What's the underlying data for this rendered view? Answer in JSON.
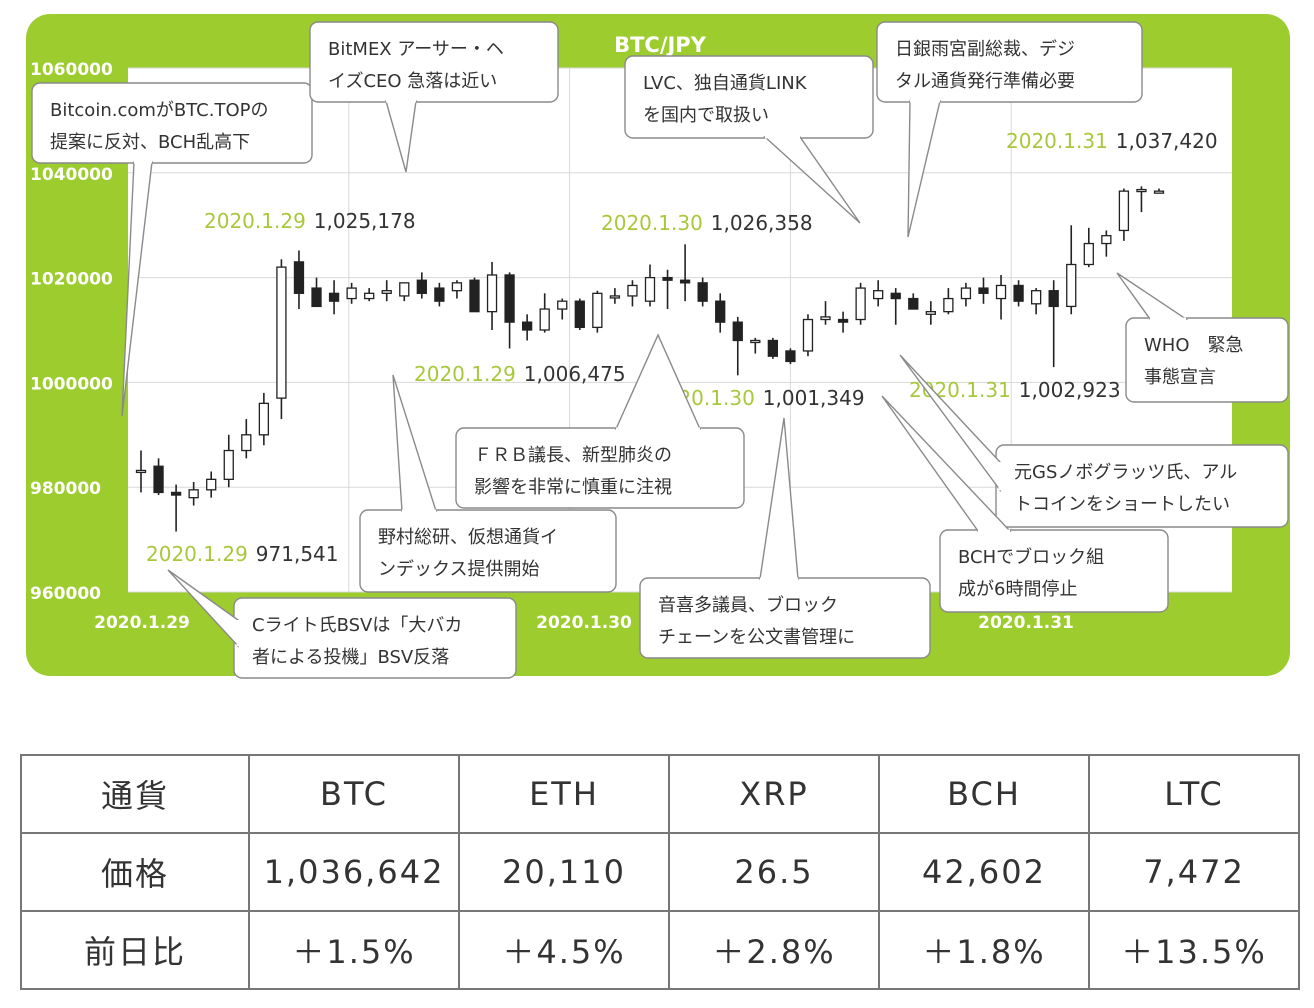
{
  "chart_data": {
    "type": "candlestick",
    "title": "BTC/JPY",
    "ylim": [
      960000,
      1060000
    ],
    "yticks": [
      "960000",
      "980000",
      "1000000",
      "1020000",
      "1040000",
      "1060000"
    ],
    "xticks": [
      "2020.1.29",
      "2020.1.30",
      "2020.1.31"
    ],
    "grid": true,
    "candles": [
      {
        "open": 983200,
        "high": 987000,
        "low": 979000,
        "close": 983200
      },
      {
        "open": 984000,
        "high": 985500,
        "low": 978500,
        "close": 979000
      },
      {
        "open": 979000,
        "high": 980500,
        "low": 971541,
        "close": 978500
      },
      {
        "open": 978000,
        "high": 981000,
        "low": 976500,
        "close": 979500
      },
      {
        "open": 979500,
        "high": 983000,
        "low": 978000,
        "close": 981500
      },
      {
        "open": 981500,
        "high": 990000,
        "low": 980000,
        "close": 987000
      },
      {
        "open": 987000,
        "high": 993000,
        "low": 985500,
        "close": 990000
      },
      {
        "open": 990000,
        "high": 998000,
        "low": 988000,
        "close": 996000
      },
      {
        "open": 997000,
        "high": 1023500,
        "low": 993000,
        "close": 1022000
      },
      {
        "open": 1023000,
        "high": 1025178,
        "low": 1014000,
        "close": 1017000
      },
      {
        "open": 1018000,
        "high": 1020000,
        "low": 1014500,
        "close": 1014500
      },
      {
        "open": 1017000,
        "high": 1019500,
        "low": 1013000,
        "close": 1015500
      },
      {
        "open": 1016000,
        "high": 1019000,
        "low": 1015000,
        "close": 1018000
      },
      {
        "open": 1016000,
        "high": 1018000,
        "low": 1015500,
        "close": 1017000
      },
      {
        "open": 1017000,
        "high": 1019500,
        "low": 1015500,
        "close": 1017500
      },
      {
        "open": 1016500,
        "high": 1019000,
        "low": 1015500,
        "close": 1019000
      },
      {
        "open": 1019500,
        "high": 1021000,
        "low": 1016000,
        "close": 1017000
      },
      {
        "open": 1018000,
        "high": 1019000,
        "low": 1014500,
        "close": 1015500
      },
      {
        "open": 1017500,
        "high": 1019500,
        "low": 1016000,
        "close": 1019000
      },
      {
        "open": 1019500,
        "high": 1020000,
        "low": 1013500,
        "close": 1013500
      },
      {
        "open": 1013500,
        "high": 1023000,
        "low": 1010000,
        "close": 1020500
      },
      {
        "open": 1020500,
        "high": 1021000,
        "low": 1006475,
        "close": 1011500
      },
      {
        "open": 1011500,
        "high": 1013000,
        "low": 1008000,
        "close": 1010000
      },
      {
        "open": 1010000,
        "high": 1017000,
        "low": 1009500,
        "close": 1014000
      },
      {
        "open": 1014000,
        "high": 1016000,
        "low": 1012000,
        "close": 1015500
      },
      {
        "open": 1015500,
        "high": 1016000,
        "low": 1010000,
        "close": 1010500
      },
      {
        "open": 1010500,
        "high": 1017500,
        "low": 1009500,
        "close": 1017000
      },
      {
        "open": 1016500,
        "high": 1018000,
        "low": 1015000,
        "close": 1016500
      },
      {
        "open": 1016500,
        "high": 1019500,
        "low": 1014500,
        "close": 1018500
      },
      {
        "open": 1015500,
        "high": 1022500,
        "low": 1014500,
        "close": 1020000
      },
      {
        "open": 1020000,
        "high": 1021500,
        "low": 1014000,
        "close": 1019500
      },
      {
        "open": 1019500,
        "high": 1026358,
        "low": 1015500,
        "close": 1019000
      },
      {
        "open": 1019000,
        "high": 1020000,
        "low": 1014500,
        "close": 1015500
      },
      {
        "open": 1015500,
        "high": 1017000,
        "low": 1009500,
        "close": 1011500
      },
      {
        "open": 1011500,
        "high": 1012500,
        "low": 1001349,
        "close": 1008000
      },
      {
        "open": 1008000,
        "high": 1008500,
        "low": 1005500,
        "close": 1008000
      },
      {
        "open": 1008000,
        "high": 1008500,
        "low": 1004500,
        "close": 1005000
      },
      {
        "open": 1006000,
        "high": 1006500,
        "low": 1003500,
        "close": 1004000
      },
      {
        "open": 1006000,
        "high": 1013000,
        "low": 1005000,
        "close": 1012000
      },
      {
        "open": 1012000,
        "high": 1015500,
        "low": 1011000,
        "close": 1012500
      },
      {
        "open": 1012000,
        "high": 1013500,
        "low": 1009500,
        "close": 1011500
      },
      {
        "open": 1012000,
        "high": 1019000,
        "low": 1011000,
        "close": 1018000
      },
      {
        "open": 1016000,
        "high": 1019500,
        "low": 1014500,
        "close": 1017500
      },
      {
        "open": 1017000,
        "high": 1018000,
        "low": 1011000,
        "close": 1016000
      },
      {
        "open": 1016000,
        "high": 1017000,
        "low": 1014000,
        "close": 1014000
      },
      {
        "open": 1013000,
        "high": 1015500,
        "low": 1011000,
        "close": 1013500
      },
      {
        "open": 1013500,
        "high": 1018000,
        "low": 1013000,
        "close": 1016000
      },
      {
        "open": 1016000,
        "high": 1019000,
        "low": 1014500,
        "close": 1018000
      },
      {
        "open": 1018000,
        "high": 1020000,
        "low": 1015000,
        "close": 1017000
      },
      {
        "open": 1016000,
        "high": 1020500,
        "low": 1012000,
        "close": 1018500
      },
      {
        "open": 1018500,
        "high": 1019500,
        "low": 1014500,
        "close": 1015500
      },
      {
        "open": 1015000,
        "high": 1018000,
        "low": 1013000,
        "close": 1017500
      },
      {
        "open": 1017500,
        "high": 1019500,
        "low": 1002923,
        "close": 1014500
      },
      {
        "open": 1014500,
        "high": 1030000,
        "low": 1013000,
        "close": 1022500
      },
      {
        "open": 1022500,
        "high": 1029500,
        "low": 1022000,
        "close": 1026500
      },
      {
        "open": 1026500,
        "high": 1029000,
        "low": 1024000,
        "close": 1028000
      },
      {
        "open": 1029000,
        "high": 1037000,
        "low": 1027000,
        "close": 1036500
      },
      {
        "open": 1036500,
        "high": 1037420,
        "low": 1032500,
        "close": 1036800
      },
      {
        "open": 1036500,
        "high": 1037000,
        "low": 1036200,
        "close": 1036500
      }
    ],
    "point_labels": [
      {
        "date": "2020.1.29",
        "value": "1,025,178"
      },
      {
        "date": "2020.1.29",
        "value": "1,006,475"
      },
      {
        "date": "2020.1.29",
        "value": "971,541"
      },
      {
        "date": "2020.1.30",
        "value": "1,026,358"
      },
      {
        "date": "2020.1.30",
        "value": "1,001,349"
      },
      {
        "date": "2020.1.31",
        "value": "1,037,420"
      },
      {
        "date": "2020.1.31",
        "value": "1,002,923"
      }
    ],
    "annotations": [
      [
        "Bitcoin.comがBTC.TOPの",
        "提案に反対、BCH乱高下"
      ],
      [
        "BitMEX アーサー・ヘ",
        "イズCEO 急落は近い"
      ],
      [
        "LVC、独自通貨LINK",
        "を国内で取扱い"
      ],
      [
        "日銀雨宮副総裁、デジ",
        "タル通貨発行準備必要"
      ],
      [
        "WHO　緊急",
        "事態宣言"
      ],
      [
        "元GSノボグラッツ氏、アル",
        "トコインをショートしたい"
      ],
      [
        "ＦＲＢ議長、新型肺炎の",
        "影響を非常に慎重に注視"
      ],
      [
        "野村総研、仮想通貨イ",
        "ンデックス提供開始"
      ],
      [
        "BCHでブロック組",
        "成が6時間停止"
      ],
      [
        "音喜多議員、ブロック",
        "チェーンを公文書管理に"
      ],
      [
        "Cライト氏BSVは「大バカ",
        "者による投機」BSV反落"
      ]
    ],
    "colors": {
      "frame": "#9ccc2e",
      "label_date": "#a8c83c",
      "up": "#ffffff",
      "down": "#222222",
      "grid": "#d8d8d8"
    }
  },
  "table": {
    "rows": [
      {
        "head": "通貨",
        "cells": [
          "BTC",
          "ETH",
          "XRP",
          "BCH",
          "LTC"
        ]
      },
      {
        "head": "価格",
        "cells": [
          "1,036,642",
          "20,110",
          "26.5",
          "42,602",
          "7,472"
        ]
      },
      {
        "head": "前日比",
        "cells": [
          "＋1.5%",
          "＋4.5%",
          "＋2.8%",
          "＋1.8%",
          "＋13.5%"
        ]
      }
    ]
  }
}
